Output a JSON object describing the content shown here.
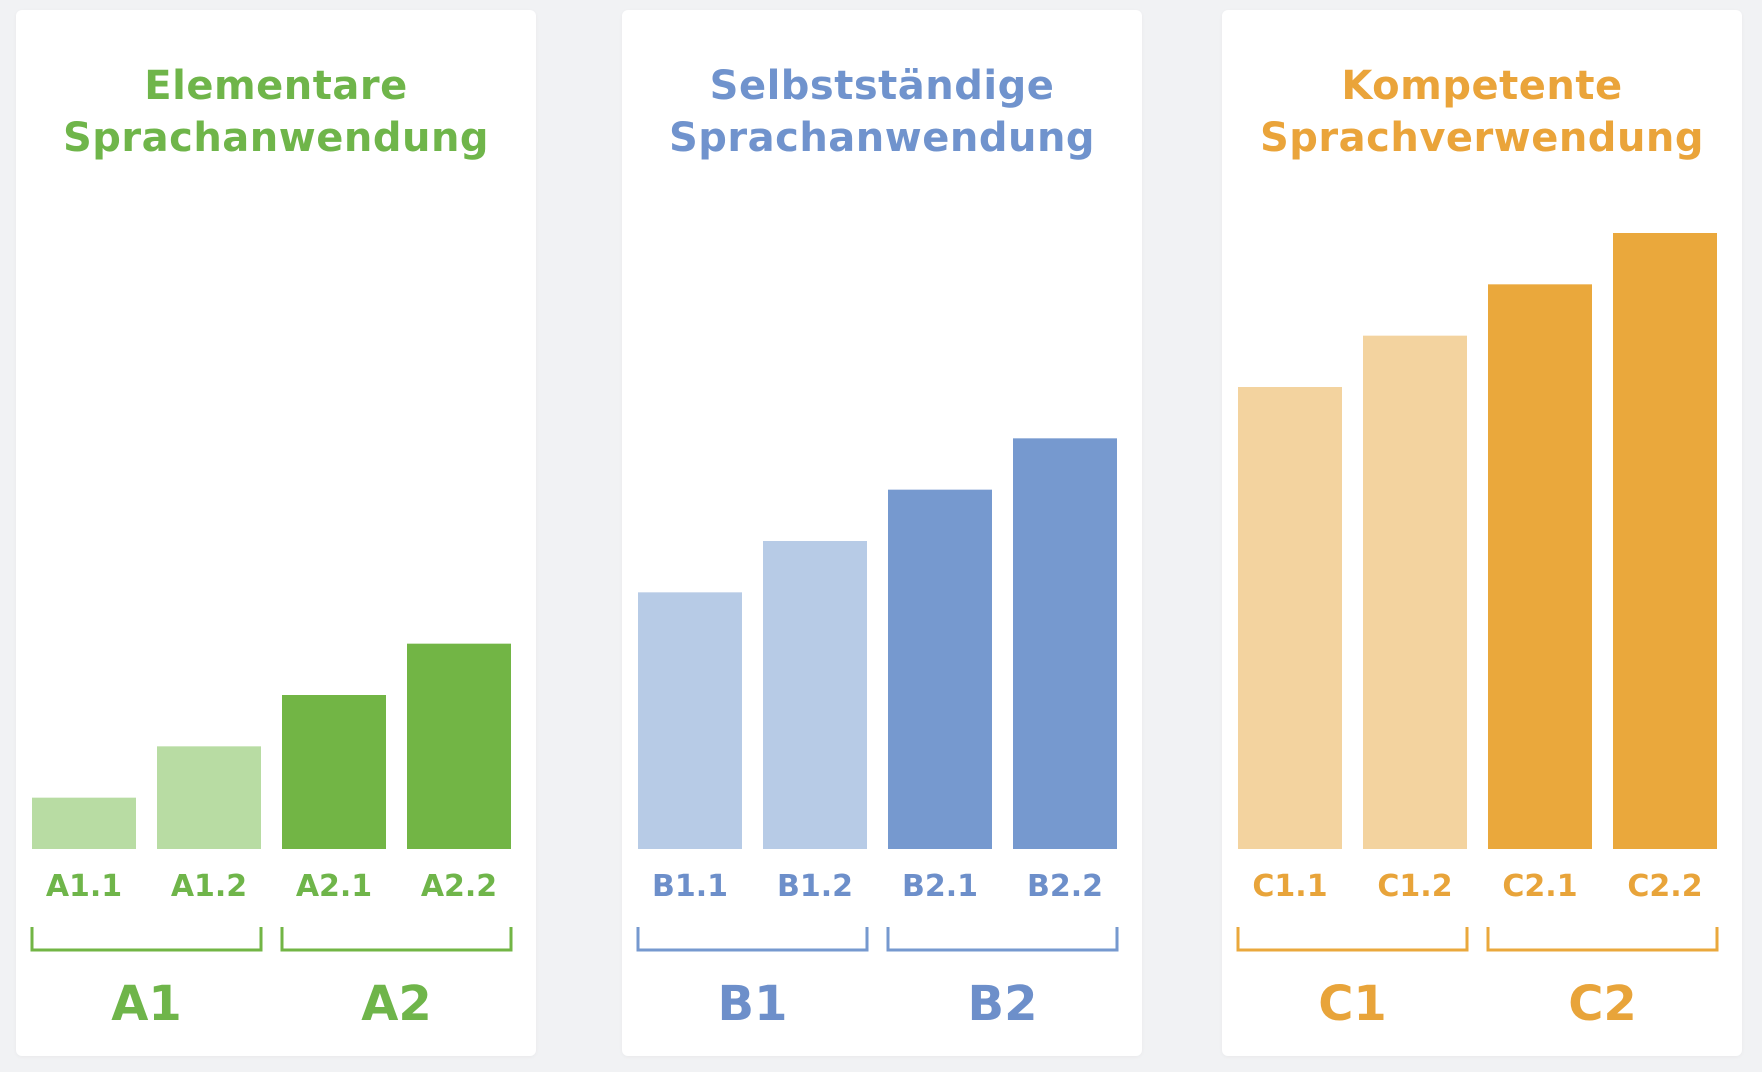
{
  "chart_data": [
    {
      "type": "bar",
      "title": [
        "Elementare",
        "Sprachanwendung"
      ],
      "categories": [
        "A1.1",
        "A1.2",
        "A2.1",
        "A2.2"
      ],
      "values": [
        1,
        2,
        3,
        4
      ],
      "groups": [
        "A1",
        "A2"
      ],
      "ylim": [
        0,
        12
      ],
      "colors": {
        "title": "#6fb54a",
        "light": "#b8dca3",
        "dark": "#72b545",
        "bracket": "#72b545",
        "label": "#6fb54a"
      }
    },
    {
      "type": "bar",
      "title": [
        "Selbstständige",
        "Sprachanwendung"
      ],
      "categories": [
        "B1.1",
        "B1.2",
        "B2.1",
        "B2.2"
      ],
      "values": [
        5,
        6,
        7,
        8
      ],
      "groups": [
        "B1",
        "B2"
      ],
      "ylim": [
        0,
        12
      ],
      "colors": {
        "title": "#7093cd",
        "light": "#b7cbe6",
        "dark": "#7699cf",
        "bracket": "#7699cf",
        "label": "#6d8fca"
      }
    },
    {
      "type": "bar",
      "title": [
        "Kompetente",
        "Sprachverwendung"
      ],
      "categories": [
        "C1.1",
        "C1.2",
        "C2.1",
        "C2.2"
      ],
      "values": [
        9,
        10,
        11,
        12
      ],
      "groups": [
        "C1",
        "C2"
      ],
      "ylim": [
        0,
        12
      ],
      "colors": {
        "title": "#eaa43a",
        "light": "#f3d39f",
        "dark": "#eaa83c",
        "bracket": "#eaa83c",
        "label": "#e8a43a"
      }
    }
  ]
}
